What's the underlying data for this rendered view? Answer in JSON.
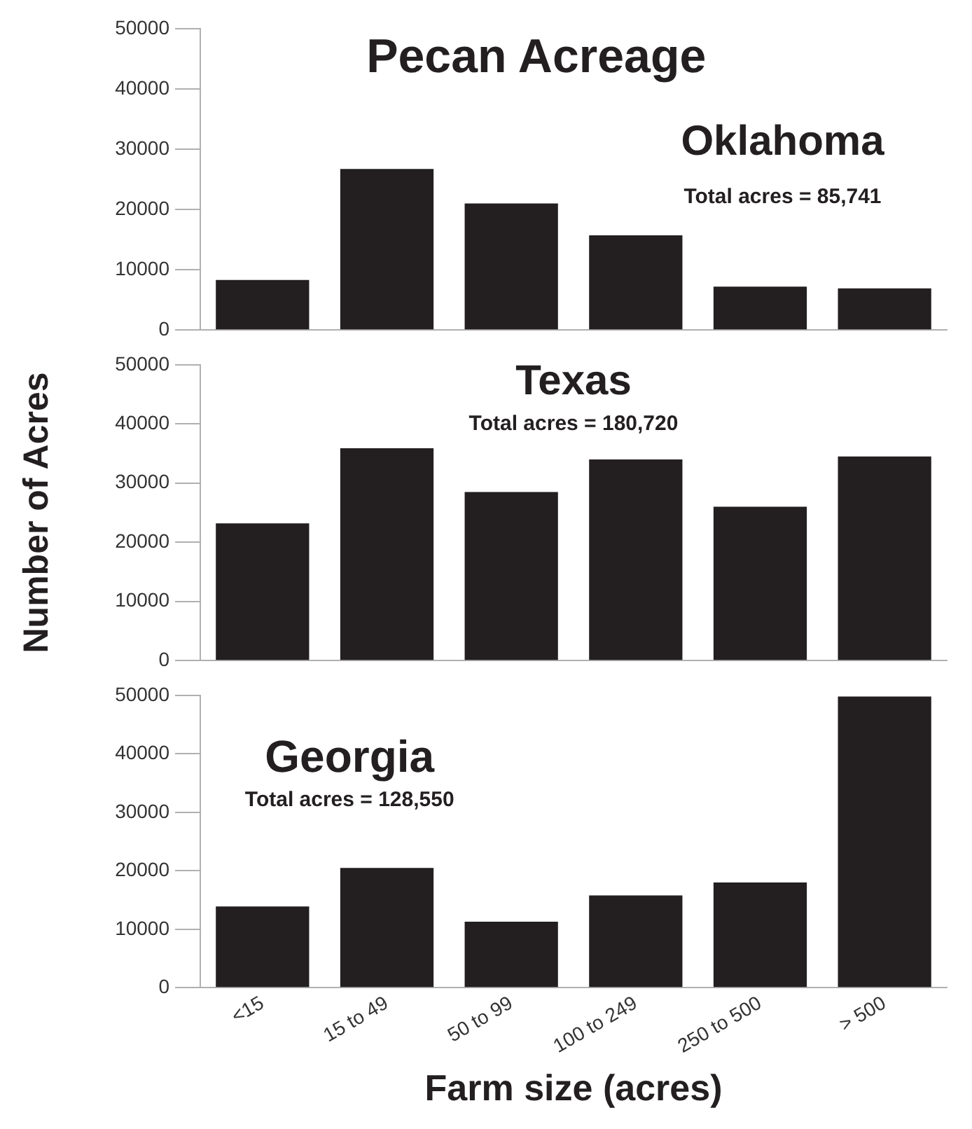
{
  "chart_data": [
    {
      "type": "bar",
      "title": "Pecan Acreage",
      "subtitle": "Oklahoma",
      "annotations": [
        "Total acres = 85,741"
      ],
      "categories": [
        null,
        null,
        null,
        null,
        null,
        null
      ],
      "values": [
        8300,
        26700,
        21000,
        15700,
        7200,
        6900
      ],
      "color": "#231f20",
      "ylim": [
        0,
        50000
      ],
      "yticks": [
        0,
        10000,
        20000,
        30000,
        40000,
        50000
      ],
      "grid": false,
      "tick_labels": "y"
    },
    {
      "type": "bar",
      "title": "Texas",
      "annotations": [
        "Total acres = 180,720"
      ],
      "ylabel": "Number of Acres",
      "categories": [
        null,
        null,
        null,
        null,
        null,
        null
      ],
      "values": [
        23200,
        35900,
        28500,
        34000,
        26000,
        34500
      ],
      "color": "#231f20",
      "ylim": [
        0,
        50000
      ],
      "yticks": [
        0,
        10000,
        20000,
        30000,
        40000,
        50000
      ],
      "grid": false,
      "tick_labels": "y"
    },
    {
      "type": "bar",
      "title": "Georgia",
      "annotations": [
        "Total acres = 128,550"
      ],
      "xlabel": "Farm size (acres)",
      "categories": [
        "<15",
        "15 to 49",
        "50 to 99",
        "100 to 249",
        "250 to 500",
        "> 500"
      ],
      "values": [
        13900,
        20500,
        11300,
        15800,
        18000,
        49800
      ],
      "color": "#231f20",
      "ylim": [
        0,
        50000
      ],
      "yticks": [
        0,
        10000,
        20000,
        30000,
        40000,
        50000
      ],
      "grid": false
    }
  ]
}
